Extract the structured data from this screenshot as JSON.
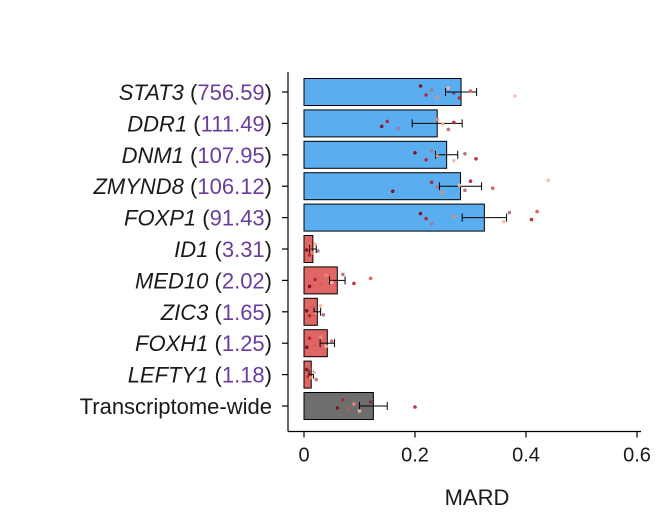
{
  "chart_data": {
    "type": "bar",
    "orientation": "horizontal",
    "categories": [
      {
        "gene": "STAT3",
        "count": "756.59",
        "group": "high"
      },
      {
        "gene": "DDR1",
        "count": "111.49",
        "group": "high"
      },
      {
        "gene": "DNM1",
        "count": "107.95",
        "group": "high"
      },
      {
        "gene": "ZMYND8",
        "count": "106.12",
        "group": "high"
      },
      {
        "gene": "FOXP1",
        "count": "91.43",
        "group": "high"
      },
      {
        "gene": "ID1",
        "count": "3.31",
        "group": "low"
      },
      {
        "gene": "MED10",
        "count": "2.02",
        "group": "low"
      },
      {
        "gene": "ZIC3",
        "count": "1.65",
        "group": "low"
      },
      {
        "gene": "FOXH1",
        "count": "1.25",
        "group": "low"
      },
      {
        "gene": "LEFTY1",
        "count": "1.18",
        "group": "low"
      },
      {
        "gene": "Transcriptome-wide",
        "count": "",
        "group": "global"
      }
    ],
    "values": [
      0.283,
      0.24,
      0.257,
      0.282,
      0.325,
      0.016,
      0.06,
      0.024,
      0.042,
      0.013,
      0.125
    ],
    "errors": [
      0.028,
      0.045,
      0.02,
      0.038,
      0.04,
      0.006,
      0.014,
      0.006,
      0.013,
      0.004,
      0.025
    ],
    "points": [
      [
        0.21,
        0.22,
        0.23,
        0.24,
        0.26,
        0.27,
        0.28,
        0.3,
        0.38
      ],
      [
        0.14,
        0.15,
        0.17,
        0.24,
        0.25,
        0.26,
        0.27
      ],
      [
        0.2,
        0.22,
        0.23,
        0.24,
        0.27,
        0.29,
        0.31
      ],
      [
        0.16,
        0.23,
        0.24,
        0.25,
        0.28,
        0.29,
        0.3,
        0.34,
        0.44
      ],
      [
        0.21,
        0.22,
        0.23,
        0.27,
        0.36,
        0.37,
        0.41,
        0.42
      ],
      [
        0.005,
        0.01,
        0.012,
        0.015,
        0.02,
        0.025
      ],
      [
        0.01,
        0.02,
        0.03,
        0.04,
        0.05,
        0.07,
        0.09,
        0.12
      ],
      [
        0.005,
        0.01,
        0.015,
        0.02,
        0.03,
        0.035
      ],
      [
        0.005,
        0.01,
        0.02,
        0.03,
        0.04,
        0.05
      ],
      [
        0.005,
        0.008,
        0.01,
        0.012,
        0.018,
        0.022
      ],
      [
        0.06,
        0.07,
        0.08,
        0.09,
        0.1,
        0.12,
        0.2
      ]
    ],
    "xlabel": "MARD",
    "ylabel": "",
    "title": "",
    "xlim": [
      0,
      0.6
    ],
    "xticks": [
      "0",
      "0.2",
      "0.4",
      "0.6"
    ],
    "colors": {
      "high": "#5aaef0",
      "low": "#e06666",
      "global": "#6e6e6e",
      "count_text": "#6a3d9a",
      "points": [
        "#7a0c1a",
        "#b22030",
        "#d9534f",
        "#f08a70",
        "#f7b9a0"
      ]
    }
  }
}
